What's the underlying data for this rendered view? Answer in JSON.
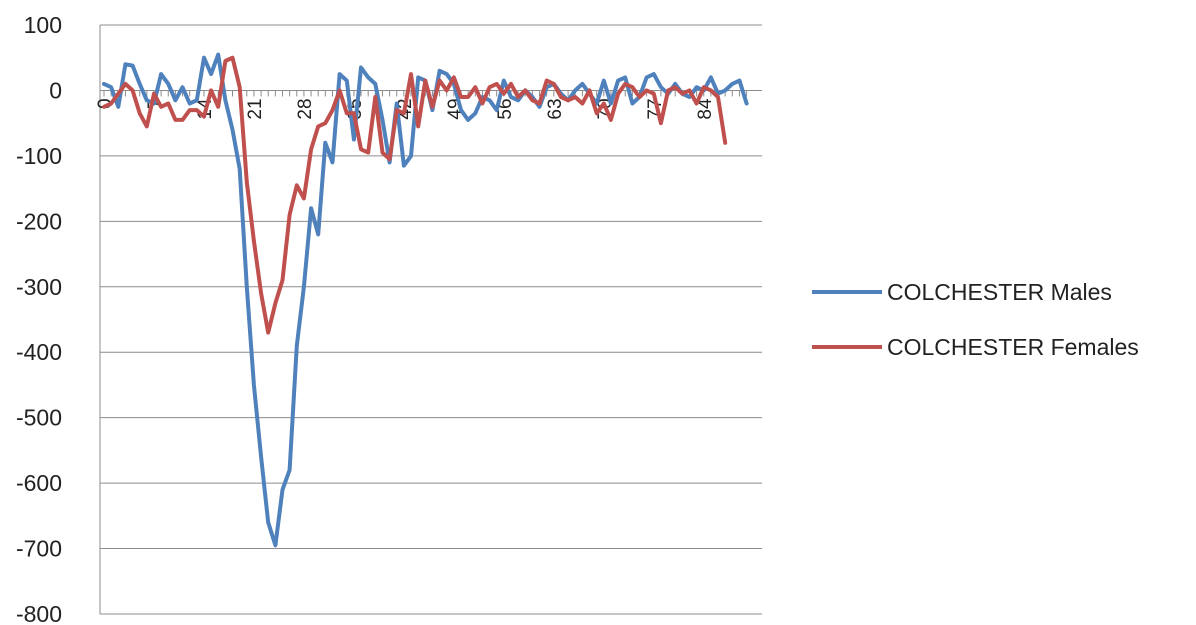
{
  "chart_data": {
    "type": "line",
    "title": "",
    "xlabel": "",
    "ylabel": "",
    "ylim": [
      -800,
      100
    ],
    "yticks": [
      100,
      0,
      -100,
      -200,
      -300,
      -400,
      -500,
      -600,
      -700,
      -800
    ],
    "xlim": [
      0,
      90
    ],
    "xticks": [
      0,
      7,
      14,
      21,
      28,
      35,
      42,
      49,
      56,
      63,
      70,
      77,
      84
    ],
    "grid": "horizontal",
    "legend_position": "right",
    "series": [
      {
        "name": "COLCHESTER Males",
        "color": "#4F81BD",
        "values": [
          10,
          5,
          -25,
          40,
          38,
          10,
          -15,
          -20,
          25,
          10,
          -15,
          5,
          -20,
          -15,
          50,
          25,
          55,
          -15,
          -60,
          -120,
          -300,
          -450,
          -560,
          -660,
          -695,
          -610,
          -580,
          -390,
          -300,
          -180,
          -220,
          -80,
          -110,
          25,
          15,
          -75,
          35,
          20,
          10,
          -45,
          -110,
          -20,
          -115,
          -100,
          20,
          15,
          -30,
          30,
          25,
          10,
          -30,
          -45,
          -35,
          -10,
          -15,
          -30,
          15,
          -10,
          -15,
          0,
          -10,
          -25,
          5,
          10,
          -5,
          -15,
          0,
          10,
          -5,
          -20,
          15,
          -20,
          15,
          20,
          -20,
          -10,
          20,
          25,
          5,
          -5,
          10,
          -5,
          -10,
          5,
          0,
          20,
          -5,
          0,
          10,
          15,
          -20
        ]
      },
      {
        "name": "COLCHESTER Females",
        "color": "#C0504D",
        "values": [
          -25,
          -20,
          -5,
          10,
          0,
          -35,
          -55,
          -5,
          -25,
          -20,
          -45,
          -45,
          -30,
          -30,
          -40,
          0,
          -25,
          45,
          50,
          5,
          -140,
          -230,
          -310,
          -370,
          -325,
          -290,
          -190,
          -145,
          -165,
          -90,
          -55,
          -50,
          -30,
          0,
          -35,
          -35,
          -90,
          -95,
          -10,
          -95,
          -105,
          -30,
          -35,
          25,
          -55,
          15,
          -25,
          15,
          0,
          20,
          -10,
          -10,
          5,
          -20,
          5,
          10,
          -5,
          10,
          -10,
          0,
          -15,
          -20,
          15,
          10,
          -10,
          -15,
          -10,
          -20,
          0,
          -35,
          -20,
          -45,
          -5,
          10,
          5,
          -10,
          0,
          -5,
          -50,
          0,
          5,
          -5,
          0,
          -20,
          5,
          0,
          -10,
          -80
        ]
      }
    ]
  }
}
